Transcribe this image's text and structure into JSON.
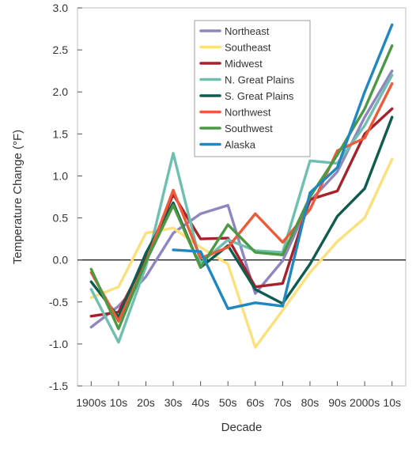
{
  "chart_data": {
    "type": "line",
    "xlabel": "Decade",
    "ylabel": "Temperature Change (°F)",
    "categories": [
      "1900s",
      "10s",
      "20s",
      "30s",
      "40s",
      "50s",
      "60s",
      "70s",
      "80s",
      "90s",
      "2000s",
      "10s"
    ],
    "ylim": [
      -1.5,
      3.0
    ],
    "yticks": [
      "3.0",
      "2.5",
      "2.0",
      "1.5",
      "1.0",
      "0.5",
      "0.0",
      "-0.5",
      "-1.0",
      "-1.5"
    ],
    "grid": false,
    "reference_line": 0.0,
    "legend_position": "top-right",
    "series": [
      {
        "name": "Northeast",
        "color": "#8f86c0",
        "values": [
          -0.8,
          -0.55,
          -0.2,
          0.32,
          0.55,
          0.65,
          -0.4,
          -0.01,
          0.7,
          1.05,
          1.7,
          2.25
        ]
      },
      {
        "name": "Southeast",
        "color": "#fce07c",
        "values": [
          -0.45,
          -0.32,
          0.32,
          0.38,
          0.15,
          -0.05,
          -1.04,
          -0.6,
          -0.15,
          0.22,
          0.5,
          1.2
        ]
      },
      {
        "name": "Midwest",
        "color": "#a7202a",
        "values": [
          -0.67,
          -0.62,
          0.02,
          0.78,
          0.25,
          0.26,
          -0.32,
          -0.28,
          0.72,
          0.82,
          1.5,
          1.8
        ]
      },
      {
        "name": "N. Great Plains",
        "color": "#6ebfb0",
        "values": [
          -0.35,
          -0.98,
          -0.08,
          1.27,
          -0.04,
          0.24,
          0.11,
          0.09,
          1.18,
          1.15,
          1.6,
          2.2
        ]
      },
      {
        "name": "S. Great Plains",
        "color": "#0f5c4f",
        "values": [
          -0.26,
          -0.68,
          0.08,
          0.68,
          -0.09,
          0.17,
          -0.35,
          -0.52,
          -0.05,
          0.52,
          0.85,
          1.7
        ]
      },
      {
        "name": "Northwest",
        "color": "#ec5b3a",
        "values": [
          -0.15,
          -0.73,
          -0.03,
          0.83,
          0.02,
          0.15,
          0.55,
          0.21,
          0.6,
          1.3,
          1.45,
          2.1
        ]
      },
      {
        "name": "Southwest",
        "color": "#4b9a43",
        "values": [
          -0.11,
          -0.82,
          -0.02,
          0.65,
          -0.09,
          0.42,
          0.09,
          0.06,
          0.75,
          1.25,
          1.8,
          2.55
        ]
      },
      {
        "name": "Alaska",
        "color": "#1f88c0",
        "values": [
          null,
          null,
          null,
          0.12,
          0.1,
          -0.58,
          -0.51,
          -0.55,
          0.8,
          1.1,
          2.0,
          2.8
        ]
      }
    ]
  }
}
